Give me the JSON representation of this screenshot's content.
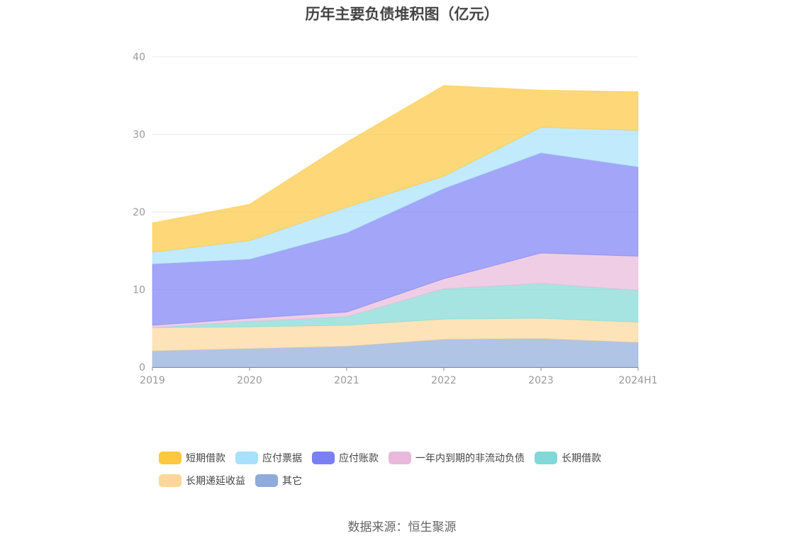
{
  "chart_data": {
    "type": "area",
    "stacked": true,
    "title": "历年主要负债堆积图（亿元）",
    "categories": [
      "2019",
      "2020",
      "2021",
      "2022",
      "2023",
      "2024H1"
    ],
    "y_ticks": [
      "0",
      "10",
      "20",
      "30",
      "40"
    ],
    "ylim": [
      0,
      40
    ],
    "grid": true,
    "legend_position": "bottom",
    "series": [
      {
        "name": "其它",
        "color": "#8fabda",
        "values": [
          2.1,
          2.4,
          2.7,
          3.6,
          3.7,
          3.2
        ]
      },
      {
        "name": "长期递延收益",
        "color": "#fdd79a",
        "values": [
          3.0,
          2.8,
          2.7,
          2.6,
          2.6,
          2.6
        ]
      },
      {
        "name": "长期借款",
        "color": "#80d9d6",
        "values": [
          0.0,
          0.7,
          1.1,
          3.9,
          4.5,
          4.1
        ]
      },
      {
        "name": "一年内到期的非流动负债",
        "color": "#e8b9da",
        "values": [
          0.3,
          0.4,
          0.6,
          1.3,
          3.9,
          4.4
        ]
      },
      {
        "name": "应付账款",
        "color": "#7b7ff5",
        "values": [
          7.9,
          7.6,
          10.2,
          11.6,
          12.9,
          11.5
        ]
      },
      {
        "name": "应付票据",
        "color": "#a7e1fb",
        "values": [
          1.5,
          2.4,
          3.3,
          1.6,
          3.3,
          4.7
        ]
      },
      {
        "name": "短期借款",
        "color": "#fdc73e",
        "values": [
          3.8,
          4.7,
          8.4,
          11.7,
          4.8,
          5.0
        ]
      }
    ]
  },
  "legend": {
    "row1": [
      "短期借款",
      "应付票据",
      "应付账款",
      "一年内到期的非流动负债",
      "长期借款"
    ],
    "row2": [
      "长期递延收益",
      "其它"
    ]
  },
  "source": "数据来源：恒生聚源"
}
